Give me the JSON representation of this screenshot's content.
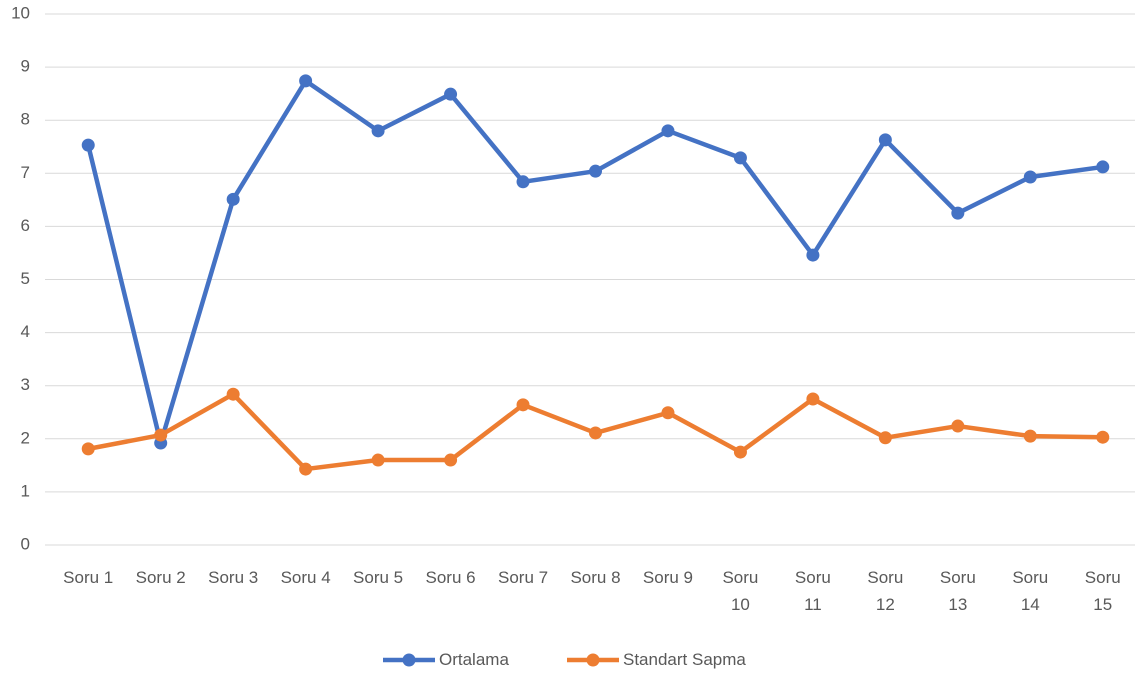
{
  "chart_data": {
    "type": "line",
    "categories": [
      "Soru 1",
      "Soru 2",
      "Soru 3",
      "Soru 4",
      "Soru 5",
      "Soru 6",
      "Soru 7",
      "Soru 8",
      "Soru 9",
      "Soru 10",
      "Soru 11",
      "Soru 12",
      "Soru 13",
      "Soru 14",
      "Soru 15"
    ],
    "series": [
      {
        "name": "Ortalama",
        "color": "#4472c4",
        "values": [
          7.53,
          1.92,
          6.51,
          8.74,
          7.8,
          8.49,
          6.84,
          7.04,
          7.8,
          7.29,
          5.46,
          7.63,
          6.25,
          6.93,
          7.12
        ]
      },
      {
        "name": "Standart Sapma",
        "color": "#ed7d31",
        "values": [
          1.81,
          2.07,
          2.84,
          1.43,
          1.6,
          1.6,
          2.64,
          2.11,
          2.49,
          1.75,
          2.75,
          2.02,
          2.24,
          2.05,
          2.03
        ]
      }
    ],
    "ylim": [
      0,
      10
    ],
    "yticks": [
      0,
      1,
      2,
      3,
      4,
      5,
      6,
      7,
      8,
      9,
      10
    ],
    "grid": true,
    "legend": "bottom"
  }
}
